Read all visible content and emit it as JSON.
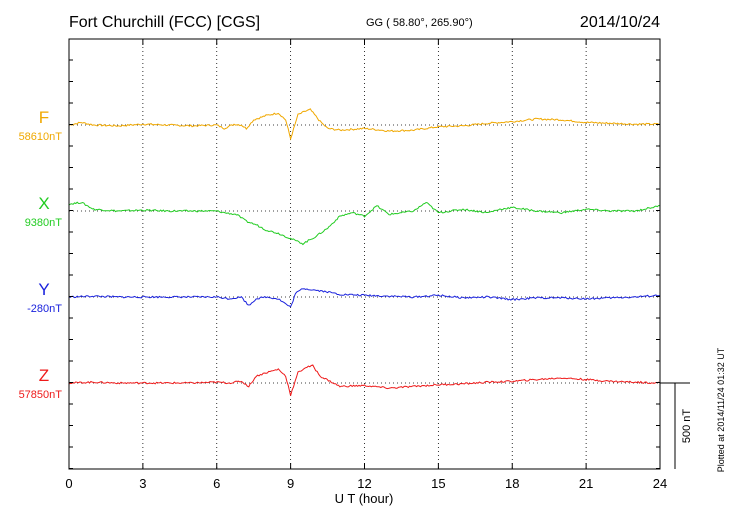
{
  "header": {
    "station": "Fort Churchill (FCC)  [CGS]",
    "coords": "GG ( 58.80°, 265.90°)",
    "date": "2014/10/24"
  },
  "footer_note": "Plotted at 2014/11/24 01:32 UT",
  "chart_data": {
    "type": "line",
    "xlabel": "U T (hour)",
    "xlim": [
      0,
      24
    ],
    "x_ticks": [
      0,
      3,
      6,
      9,
      12,
      15,
      18,
      21,
      24
    ],
    "grid": true,
    "scale_bar": {
      "label": "500 nT",
      "value_nT": 500
    },
    "series": [
      {
        "name": "F",
        "baseline_label": "58610nT",
        "baseline_nT": 58610,
        "color": "#f0a800",
        "points": [
          [
            0,
            0
          ],
          [
            0.5,
            15
          ],
          [
            1,
            0
          ],
          [
            2,
            -5
          ],
          [
            3,
            5
          ],
          [
            4,
            0
          ],
          [
            5,
            -5
          ],
          [
            6,
            0
          ],
          [
            6.3,
            -20
          ],
          [
            6.7,
            5
          ],
          [
            7,
            0
          ],
          [
            7.2,
            -20
          ],
          [
            7.5,
            30
          ],
          [
            8,
            55
          ],
          [
            8.5,
            70
          ],
          [
            8.8,
            30
          ],
          [
            9,
            -80
          ],
          [
            9.3,
            60
          ],
          [
            9.6,
            80
          ],
          [
            9.8,
            90
          ],
          [
            10.2,
            20
          ],
          [
            10.5,
            -20
          ],
          [
            11,
            -30
          ],
          [
            12,
            -20
          ],
          [
            13,
            -35
          ],
          [
            14,
            -30
          ],
          [
            15,
            -10
          ],
          [
            16,
            -5
          ],
          [
            17,
            10
          ],
          [
            18,
            20
          ],
          [
            19,
            35
          ],
          [
            20,
            30
          ],
          [
            21,
            15
          ],
          [
            22,
            10
          ],
          [
            23,
            5
          ],
          [
            24,
            5
          ]
        ]
      },
      {
        "name": "X",
        "baseline_label": "9380nT",
        "baseline_nT": 9380,
        "color": "#22cc22",
        "points": [
          [
            0,
            40
          ],
          [
            0.5,
            50
          ],
          [
            1,
            10
          ],
          [
            2,
            0
          ],
          [
            3,
            5
          ],
          [
            4,
            0
          ],
          [
            5,
            0
          ],
          [
            6,
            0
          ],
          [
            6.3,
            -10
          ],
          [
            6.8,
            -20
          ],
          [
            7.2,
            -60
          ],
          [
            7.6,
            -80
          ],
          [
            8,
            -110
          ],
          [
            8.5,
            -130
          ],
          [
            9,
            -160
          ],
          [
            9.5,
            -190
          ],
          [
            10,
            -150
          ],
          [
            10.5,
            -100
          ],
          [
            11,
            -30
          ],
          [
            11.5,
            -10
          ],
          [
            12,
            -30
          ],
          [
            12.5,
            30
          ],
          [
            13,
            -20
          ],
          [
            14,
            0
          ],
          [
            14.5,
            50
          ],
          [
            15,
            -10
          ],
          [
            16,
            10
          ],
          [
            17,
            -10
          ],
          [
            17.5,
            10
          ],
          [
            18,
            20
          ],
          [
            19,
            0
          ],
          [
            20,
            -10
          ],
          [
            21,
            10
          ],
          [
            22,
            0
          ],
          [
            23,
            0
          ],
          [
            24,
            30
          ]
        ]
      },
      {
        "name": "Y",
        "baseline_label": "-280nT",
        "baseline_nT": -280,
        "color": "#1a22dd",
        "points": [
          [
            0,
            0
          ],
          [
            1,
            5
          ],
          [
            2,
            0
          ],
          [
            3,
            0
          ],
          [
            4,
            0
          ],
          [
            5,
            0
          ],
          [
            6,
            0
          ],
          [
            6.5,
            -10
          ],
          [
            7,
            0
          ],
          [
            7.3,
            -50
          ],
          [
            7.6,
            -10
          ],
          [
            8,
            0
          ],
          [
            8.5,
            -10
          ],
          [
            9,
            -60
          ],
          [
            9.2,
            20
          ],
          [
            9.5,
            50
          ],
          [
            10,
            40
          ],
          [
            10.5,
            30
          ],
          [
            11,
            15
          ],
          [
            12,
            10
          ],
          [
            13,
            5
          ],
          [
            14,
            0
          ],
          [
            15,
            10
          ],
          [
            16,
            -5
          ],
          [
            17,
            0
          ],
          [
            18,
            -15
          ],
          [
            19,
            -5
          ],
          [
            20,
            -5
          ],
          [
            21,
            -10
          ],
          [
            22,
            -5
          ],
          [
            23,
            0
          ],
          [
            24,
            10
          ]
        ]
      },
      {
        "name": "Z",
        "baseline_label": "57850nT",
        "baseline_nT": 57850,
        "color": "#ee1a1a",
        "points": [
          [
            0,
            0
          ],
          [
            1,
            5
          ],
          [
            2,
            0
          ],
          [
            3,
            0
          ],
          [
            4,
            0
          ],
          [
            5,
            0
          ],
          [
            6,
            5
          ],
          [
            6.5,
            0
          ],
          [
            7,
            10
          ],
          [
            7.3,
            -20
          ],
          [
            7.6,
            40
          ],
          [
            8,
            60
          ],
          [
            8.5,
            80
          ],
          [
            8.8,
            40
          ],
          [
            9,
            -70
          ],
          [
            9.3,
            60
          ],
          [
            9.6,
            90
          ],
          [
            9.9,
            100
          ],
          [
            10.2,
            40
          ],
          [
            10.6,
            10
          ],
          [
            11,
            -20
          ],
          [
            12,
            -15
          ],
          [
            13,
            -30
          ],
          [
            14,
            -20
          ],
          [
            15,
            -10
          ],
          [
            16,
            -5
          ],
          [
            17,
            5
          ],
          [
            18,
            10
          ],
          [
            19,
            20
          ],
          [
            20,
            30
          ],
          [
            21,
            20
          ],
          [
            22,
            10
          ],
          [
            23,
            5
          ],
          [
            24,
            0
          ]
        ]
      }
    ]
  }
}
